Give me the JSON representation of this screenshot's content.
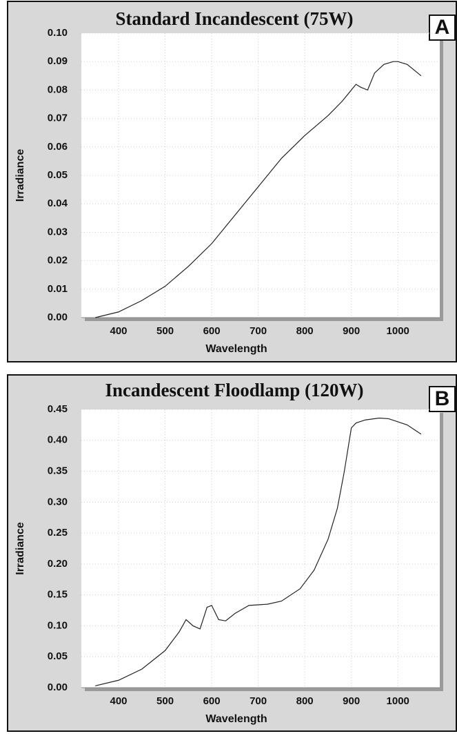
{
  "chart_data": [
    {
      "type": "line",
      "title": "Standard Incandescent (75W)",
      "panel_label": "A",
      "x_label": "Wavelength",
      "y_label": "Irradiance",
      "x": [
        350,
        400,
        450,
        500,
        550,
        600,
        650,
        700,
        750,
        800,
        850,
        880,
        900,
        910,
        920,
        935,
        950,
        970,
        990,
        1000,
        1020,
        1050
      ],
      "series": [
        {
          "color": "#222222",
          "values": [
            0.0,
            0.002,
            0.006,
            0.011,
            0.018,
            0.026,
            0.036,
            0.046,
            0.056,
            0.064,
            0.071,
            0.076,
            0.08,
            0.082,
            0.081,
            0.08,
            0.086,
            0.089,
            0.09,
            0.09,
            0.089,
            0.085
          ]
        }
      ],
      "xlim": [
        320,
        1090
      ],
      "xticks": [
        400,
        500,
        600,
        700,
        800,
        900,
        1000
      ],
      "ylim": [
        0,
        0.1
      ],
      "yticks": [
        {
          "value": 0,
          "label": "0.00"
        },
        0.01,
        0.02,
        0.03,
        0.04,
        0.05,
        0.06,
        0.07,
        0.08,
        0.09,
        {
          "value": 0.1,
          "label": "0.10"
        }
      ],
      "grid": true
    },
    {
      "type": "line",
      "title": "Incandescent Floodlamp (120W)",
      "panel_label": "B",
      "x_label": "Wavelength",
      "y_label": "Irradiance",
      "x": [
        350,
        400,
        450,
        500,
        530,
        545,
        560,
        575,
        590,
        600,
        615,
        630,
        650,
        680,
        720,
        750,
        790,
        820,
        850,
        870,
        885,
        900,
        910,
        930,
        960,
        980,
        1000,
        1020,
        1050
      ],
      "series": [
        {
          "color": "#222222",
          "values": [
            0.003,
            0.012,
            0.03,
            0.06,
            0.09,
            0.11,
            0.1,
            0.095,
            0.13,
            0.133,
            0.11,
            0.108,
            0.12,
            0.133,
            0.135,
            0.14,
            0.16,
            0.19,
            0.24,
            0.29,
            0.35,
            0.42,
            0.428,
            0.433,
            0.436,
            0.435,
            0.43,
            0.425,
            0.41
          ]
        }
      ],
      "xlim": [
        320,
        1090
      ],
      "xticks": [
        400,
        500,
        600,
        700,
        800,
        900,
        1000
      ],
      "ylim": [
        0,
        0.45
      ],
      "yticks": [
        {
          "value": 0,
          "label": "0.00"
        },
        0.05,
        {
          "value": 0.1,
          "label": "0.10"
        },
        0.15,
        {
          "value": 0.2,
          "label": "0.20"
        },
        0.25,
        {
          "value": 0.3,
          "label": "0.30"
        },
        0.35,
        {
          "value": 0.4,
          "label": "0.40"
        },
        0.45
      ],
      "grid": true
    }
  ]
}
